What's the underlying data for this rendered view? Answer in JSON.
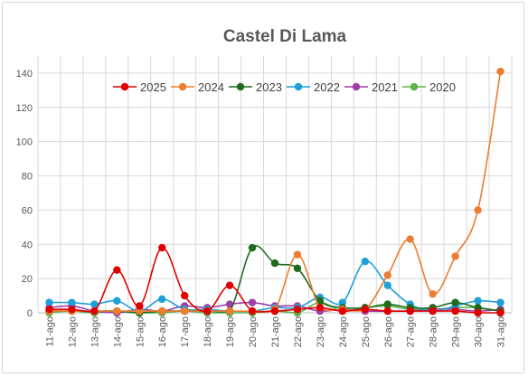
{
  "chart_data": {
    "type": "line",
    "title": "Castel Di Lama",
    "xlabel": "",
    "ylabel": "",
    "ylim": [
      0,
      150
    ],
    "yticks": [
      0,
      20,
      40,
      60,
      80,
      100,
      120,
      140
    ],
    "grid": true,
    "legend_position": "top",
    "categories": [
      "11-ago",
      "12-ago",
      "13-ago",
      "14-ago",
      "15-ago",
      "16-ago",
      "17-ago",
      "18-ago",
      "19-ago",
      "20-ago",
      "21-ago",
      "22-ago",
      "23-ago",
      "24-ago",
      "25-ago",
      "26-ago",
      "27-ago",
      "28-ago",
      "29-ago",
      "30-ago",
      "31-ago"
    ],
    "series": [
      {
        "name": "2025",
        "color": "#e00000",
        "values": [
          2,
          2,
          1,
          25,
          4,
          38,
          10,
          1,
          16,
          1,
          1,
          2,
          3,
          1,
          2,
          1,
          1,
          1,
          1,
          0,
          0
        ]
      },
      {
        "name": "2024",
        "color": "#ed7d31",
        "values": [
          1,
          1,
          1,
          1,
          1,
          1,
          1,
          1,
          1,
          1,
          2,
          34,
          3,
          2,
          2,
          22,
          43,
          11,
          33,
          60,
          141
        ]
      },
      {
        "name": "2023",
        "color": "#1e6b1e",
        "values": [
          1,
          1,
          1,
          1,
          0,
          1,
          1,
          1,
          1,
          38,
          29,
          26,
          7,
          3,
          3,
          5,
          3,
          3,
          6,
          3,
          1
        ]
      },
      {
        "name": "2022",
        "color": "#1fa0d8",
        "values": [
          6,
          6,
          5,
          7,
          1,
          8,
          2,
          2,
          1,
          1,
          3,
          3,
          9,
          6,
          30,
          16,
          5,
          1,
          4,
          7,
          6
        ]
      },
      {
        "name": "2021",
        "color": "#9e3ea8",
        "values": [
          3,
          4,
          1,
          0,
          2,
          1,
          4,
          3,
          5,
          6,
          4,
          4,
          1,
          2,
          1,
          1,
          1,
          2,
          2,
          1,
          2
        ]
      },
      {
        "name": "2020",
        "color": "#5db34a",
        "values": [
          0,
          1,
          0,
          1,
          0,
          0,
          1,
          0,
          0,
          0,
          1,
          0,
          6,
          1,
          3,
          4,
          2,
          2,
          3,
          3,
          1
        ]
      }
    ]
  }
}
